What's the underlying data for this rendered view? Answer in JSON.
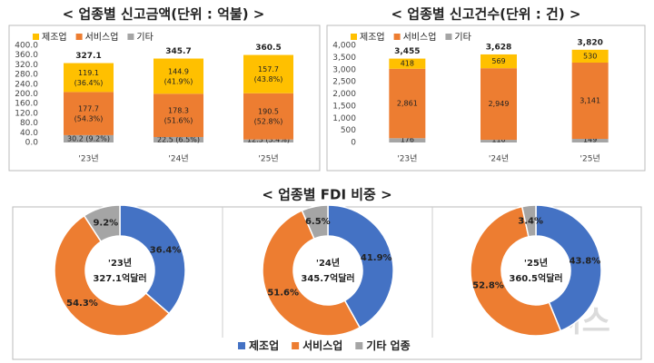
{
  "pie_section_title": "< 업종별 FDI 비중 >",
  "watermark": "뉴시스",
  "pie_legend": [
    {
      "name": "제조업",
      "color": "#4472C4"
    },
    {
      "name": "서비스업",
      "color": "#ED7D31"
    },
    {
      "name": "기타 업종",
      "color": "#A5A5A5"
    }
  ],
  "chart_data": [
    {
      "type": "stacked_bar",
      "title": "< 업종별 신고금액(단위 : 억불) >",
      "categories": [
        "'23년",
        "'24년",
        "'25년"
      ],
      "series": [
        {
          "name": "제조업",
          "color": "#FFC000",
          "values": [
            119.1,
            144.9,
            157.7
          ],
          "value_labels": [
            "119.1 (36.4%)",
            "144.9 (41.9%)",
            "157.7 (43.8%)"
          ]
        },
        {
          "name": "서비스업",
          "color": "#ED7D31",
          "values": [
            177.7,
            178.3,
            190.5
          ],
          "value_labels": [
            "177.7 (54.3%)",
            "178.3 (51.6%)",
            "190.5 (52.8%)"
          ]
        },
        {
          "name": "기타",
          "color": "#A5A5A5",
          "values": [
            30.2,
            22.5,
            12.3
          ],
          "value_labels": [
            "30.2 (9.2%)",
            "22.5 (6.5%)",
            "12.3 (3.4%)"
          ]
        }
      ],
      "totals": [
        327.1,
        345.7,
        360.5
      ],
      "ylim": [
        0,
        400
      ],
      "yticks": [
        {
          "value": 0,
          "label": "0.0"
        },
        {
          "value": 40,
          "label": "40.0"
        },
        {
          "value": 80,
          "label": "80.0"
        },
        {
          "value": 120,
          "label": "120.0"
        },
        {
          "value": 160,
          "label": "160.0"
        },
        {
          "value": 200,
          "label": "200.0"
        },
        {
          "value": 240,
          "label": "240.0"
        },
        {
          "value": 280,
          "label": "280.0"
        },
        {
          "value": 320,
          "label": "320.0"
        },
        {
          "value": 360,
          "label": "360.0"
        },
        {
          "value": 400,
          "label": "400.0"
        }
      ]
    },
    {
      "type": "stacked_bar",
      "title": "< 업종별 신고건수(단위 : 건) >",
      "categories": [
        "'23년",
        "'24년",
        "'25년"
      ],
      "series": [
        {
          "name": "제조업",
          "color": "#FFC000",
          "values": [
            418,
            569,
            530
          ]
        },
        {
          "name": "서비스업",
          "color": "#ED7D31",
          "values": [
            2861,
            2949,
            3141
          ],
          "value_labels": [
            "2,861",
            "2,949",
            "3,141"
          ]
        },
        {
          "name": "기타",
          "color": "#A5A5A5",
          "values": [
            176,
            110,
            149
          ]
        }
      ],
      "totals": [
        3455,
        3628,
        3820
      ],
      "total_labels": [
        "3,455",
        "3,628",
        "3,820"
      ],
      "ylim": [
        0,
        4000
      ],
      "yticks": [
        0,
        500,
        {
          "value": 1000,
          "label": "1,000"
        },
        {
          "value": 1500,
          "label": "1,500"
        },
        {
          "value": 2000,
          "label": "2,000"
        },
        {
          "value": 2500,
          "label": "2,500"
        },
        {
          "value": 3000,
          "label": "3,000"
        },
        {
          "value": 3500,
          "label": "3,500"
        },
        {
          "value": 4000,
          "label": "4,000"
        }
      ]
    },
    {
      "type": "pie",
      "center_title": "'23년",
      "center_label": "327.1억달러",
      "values": [
        36.4,
        54.3,
        9.2
      ],
      "value_labels": [
        "36.4%",
        "54.3%",
        "9.2%"
      ]
    },
    {
      "type": "pie",
      "center_title": "'24년",
      "center_label": "345.7억달러",
      "values": [
        41.9,
        51.6,
        6.5
      ],
      "value_labels": [
        "41.9%",
        "51.6%",
        "6.5%"
      ]
    },
    {
      "type": "pie",
      "center_title": "'25년",
      "center_label": "360.5억달러",
      "values": [
        43.8,
        52.8,
        3.4
      ],
      "value_labels": [
        "43.8%",
        "52.8%",
        "3.4%"
      ]
    }
  ]
}
